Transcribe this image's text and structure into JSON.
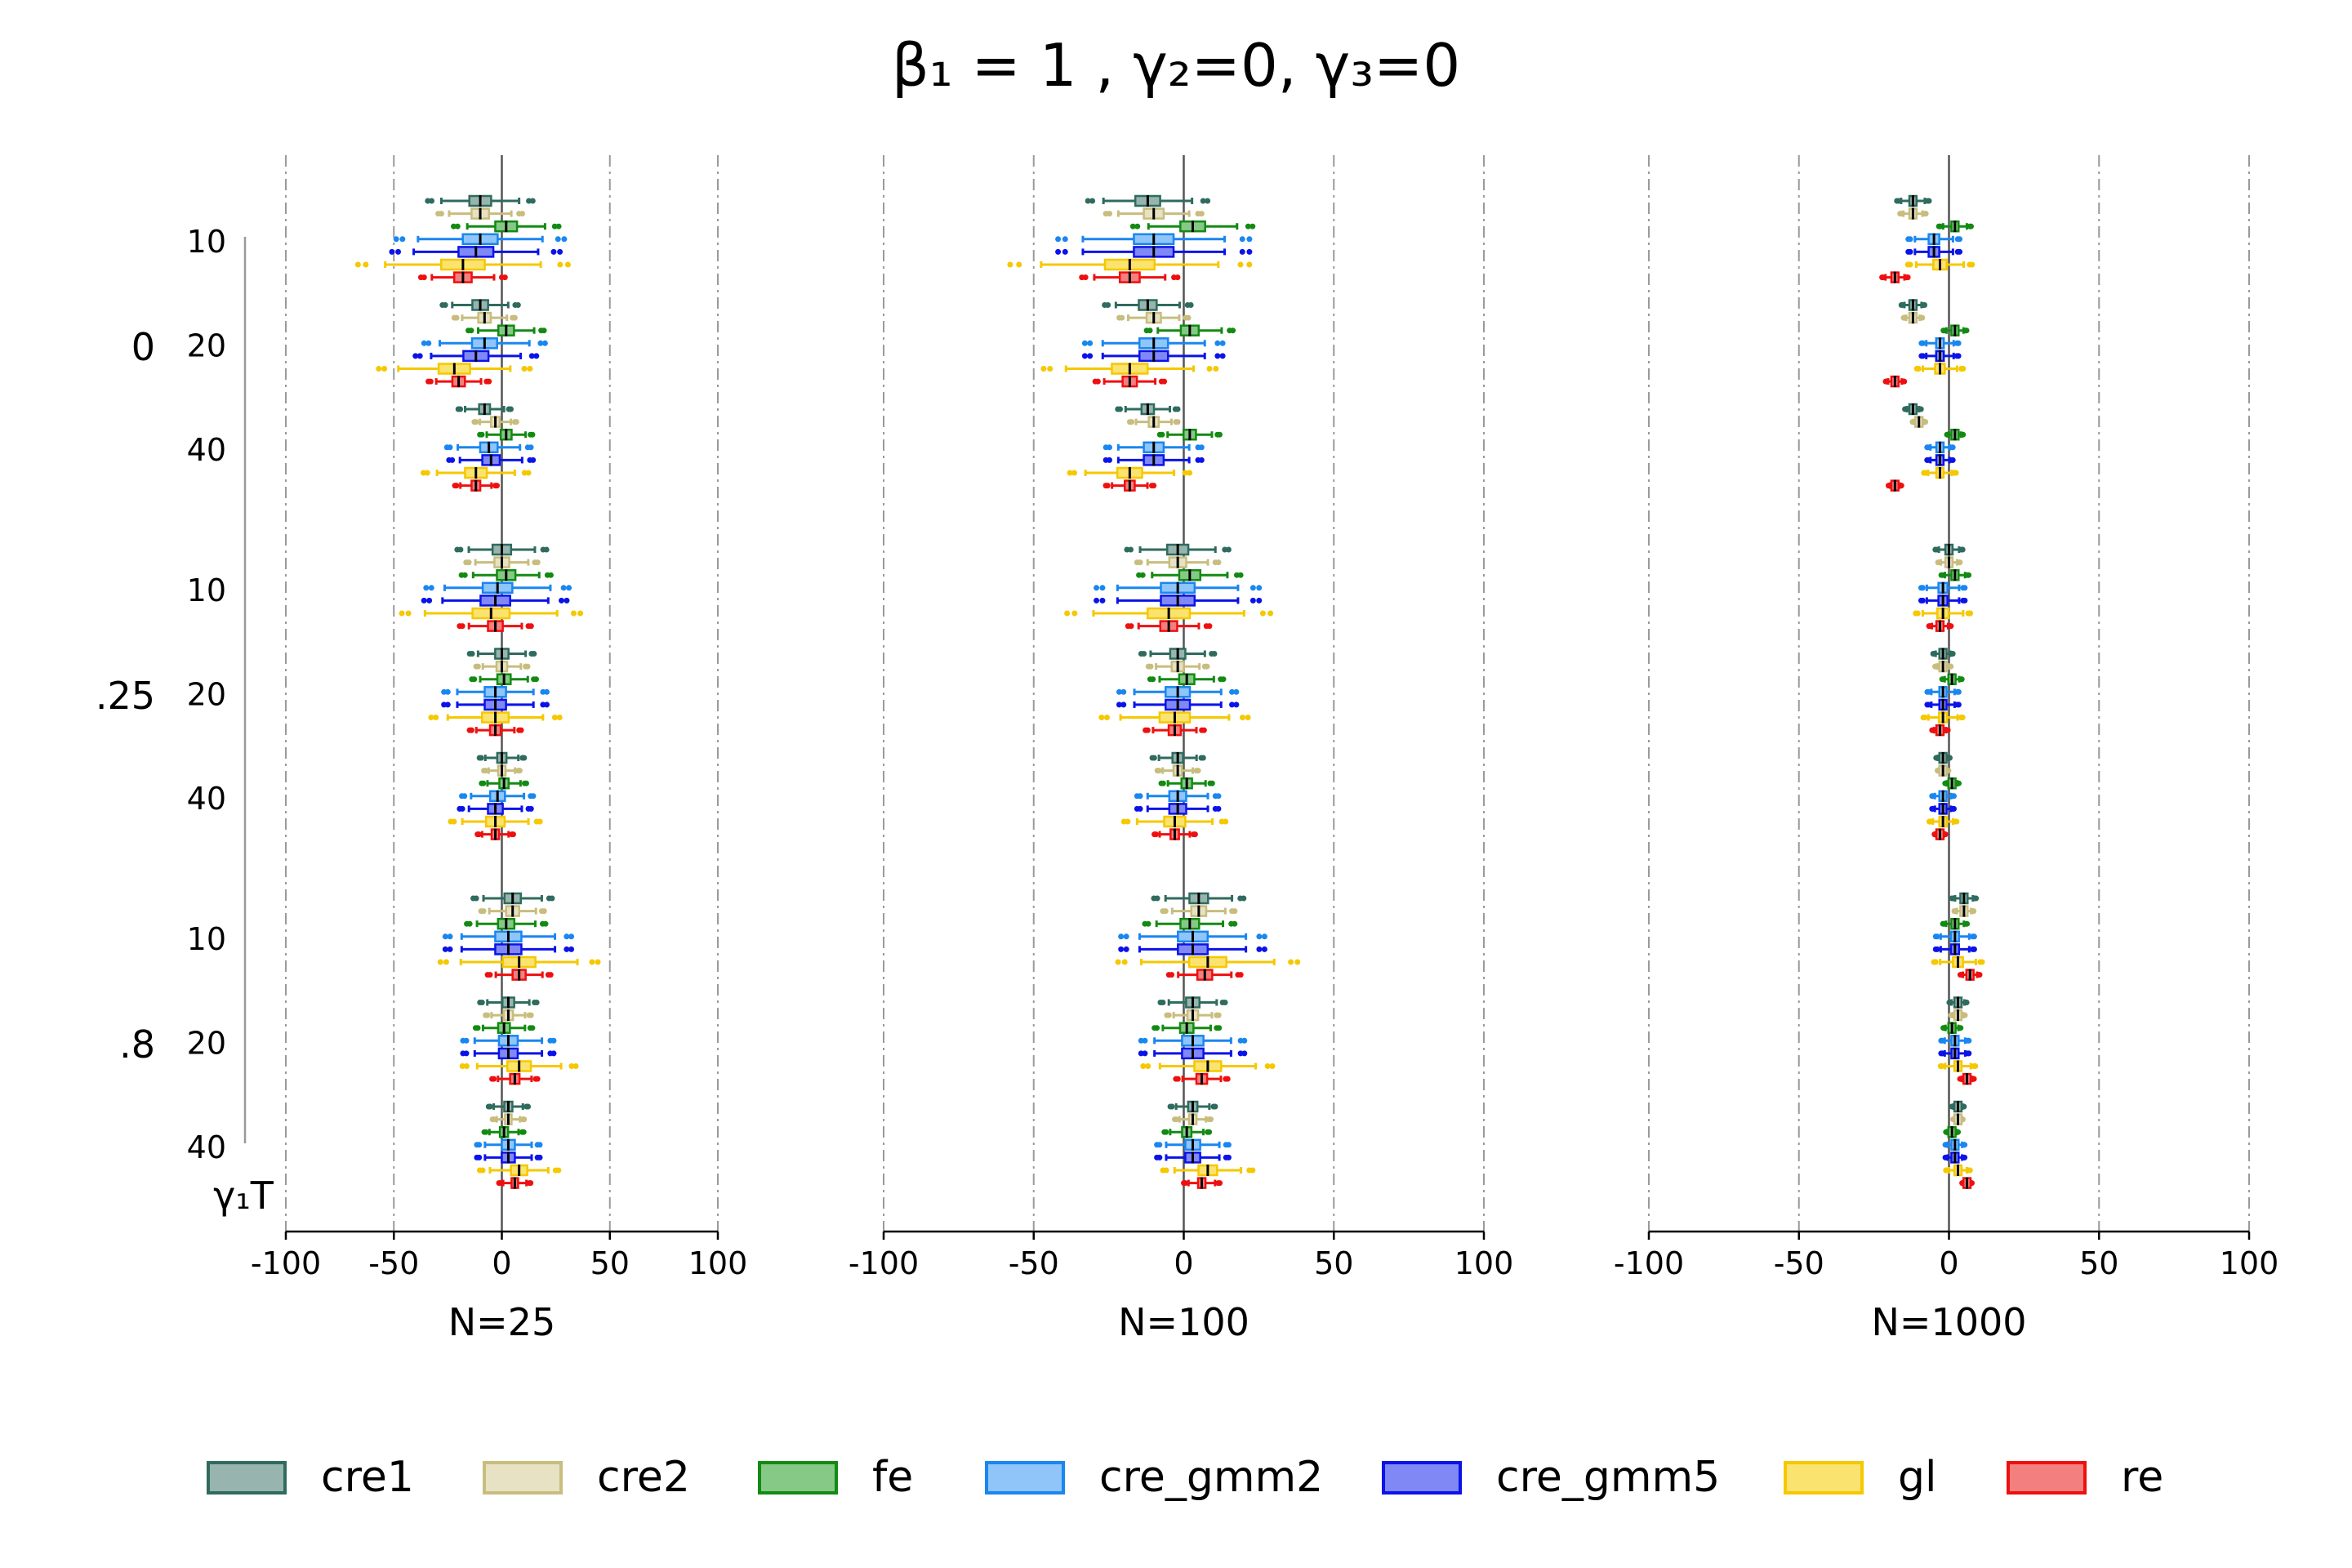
{
  "chart_data": {
    "type": "boxplot",
    "title": "β₁ = 1        , γ₂=0, γ₃=0",
    "y_axis_label": "γ₁T",
    "gamma_groups": [
      "0",
      ".25",
      ".8"
    ],
    "T_values": [
      "10",
      "20",
      "40"
    ],
    "x_ticks": [
      "-100",
      "-50",
      "0",
      "50",
      "100"
    ],
    "xlim": [
      -100,
      100
    ],
    "panels": [
      {
        "xlabel": "N=25",
        "whisker_scale": 1.0
      },
      {
        "xlabel": "N=100",
        "whisker_scale": 0.82
      },
      {
        "xlabel": "N=1000",
        "whisker_scale": 0.22
      }
    ],
    "series": [
      {
        "name": "cre1",
        "color": "#2f6b5e",
        "fill": "#97b5ae"
      },
      {
        "name": "cre2",
        "color": "#c8bd7e",
        "fill": "#e7e2c3"
      },
      {
        "name": "fe",
        "color": "#138a13",
        "fill": "#86c986"
      },
      {
        "name": "cre_gmm2",
        "color": "#1a86f0",
        "fill": "#8fc5f8"
      },
      {
        "name": "cre_gmm5",
        "color": "#0b13e8",
        "fill": "#8088f5"
      },
      {
        "name": "gl",
        "color": "#f5c800",
        "fill": "#fbe370"
      },
      {
        "name": "re",
        "color": "#ee1010",
        "fill": "#f47f7f"
      }
    ],
    "medians": {
      "N=25": [
        [
          [
            -10,
            -10,
            2,
            -10,
            -12,
            -18,
            -18
          ],
          [
            -10,
            -8,
            2,
            -8,
            -12,
            -22,
            -20
          ],
          [
            -8,
            -3,
            2,
            -6,
            -5,
            -12,
            -12
          ]
        ],
        [
          [
            0,
            0,
            2,
            -2,
            -3,
            -5,
            -3
          ],
          [
            0,
            0,
            1,
            -3,
            -3,
            -3,
            -3
          ],
          [
            0,
            0,
            1,
            -2,
            -3,
            -3,
            -3
          ]
        ],
        [
          [
            5,
            5,
            2,
            3,
            3,
            8,
            8
          ],
          [
            3,
            3,
            1,
            3,
            3,
            8,
            6
          ],
          [
            3,
            3,
            1,
            3,
            3,
            8,
            6
          ]
        ]
      ],
      "N=100": [
        [
          [
            -12,
            -10,
            3,
            -10,
            -10,
            -18,
            -18
          ],
          [
            -12,
            -10,
            2,
            -10,
            -10,
            -18,
            -18
          ],
          [
            -12,
            -10,
            2,
            -10,
            -10,
            -18,
            -18
          ]
        ],
        [
          [
            -2,
            -2,
            2,
            -2,
            -2,
            -5,
            -5
          ],
          [
            -2,
            -2,
            1,
            -2,
            -2,
            -3,
            -3
          ],
          [
            -2,
            -2,
            1,
            -2,
            -2,
            -3,
            -3
          ]
        ],
        [
          [
            5,
            5,
            2,
            3,
            3,
            8,
            7
          ],
          [
            3,
            3,
            1,
            3,
            3,
            8,
            6
          ],
          [
            3,
            3,
            1,
            3,
            3,
            8,
            6
          ]
        ]
      ],
      "N=1000": [
        [
          [
            -12,
            -12,
            2,
            -5,
            -5,
            -3,
            -18
          ],
          [
            -12,
            -12,
            2,
            -3,
            -3,
            -3,
            -18
          ],
          [
            -12,
            -10,
            2,
            -3,
            -3,
            -3,
            -18
          ]
        ],
        [
          [
            0,
            0,
            2,
            -2,
            -2,
            -2,
            -3
          ],
          [
            -2,
            -2,
            1,
            -2,
            -2,
            -2,
            -3
          ],
          [
            -2,
            -2,
            1,
            -2,
            -2,
            -2,
            -3
          ]
        ],
        [
          [
            5,
            5,
            2,
            2,
            2,
            3,
            7
          ],
          [
            3,
            3,
            1,
            2,
            2,
            3,
            6
          ],
          [
            3,
            3,
            1,
            2,
            2,
            3,
            6
          ]
        ]
      ]
    }
  },
  "legend": {
    "items": [
      "cre1",
      "cre2",
      "fe",
      "cre_gmm2",
      "cre_gmm5",
      "gl",
      "re"
    ]
  }
}
